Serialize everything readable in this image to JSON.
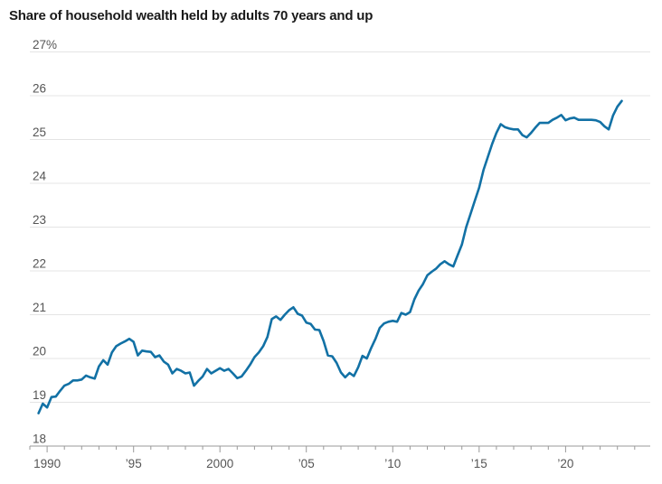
{
  "title": "Share of household wealth held by adults 70 years and up",
  "chart_data": {
    "type": "line",
    "title": "Share of household wealth held by adults 70 years and up",
    "xlabel": "",
    "ylabel": "",
    "unit": "%",
    "ylim": [
      18,
      27
    ],
    "xlim": [
      1989,
      2024.9
    ],
    "grid": "horizontal-only",
    "legend": "none",
    "yticks": [
      18,
      19,
      20,
      21,
      22,
      23,
      24,
      25,
      26,
      27
    ],
    "ytick_labels": [
      "18",
      "19",
      "20",
      "21",
      "22",
      "23",
      "24",
      "25",
      "26",
      "27%"
    ],
    "x_minor_tick_start": 1989,
    "x_minor_tick_end": 2024,
    "x_labeled_ticks": [
      {
        "year": 1990,
        "label": "1990"
      },
      {
        "year": 1995,
        "label": "’95"
      },
      {
        "year": 2000,
        "label": "2000"
      },
      {
        "year": 2005,
        "label": "’05"
      },
      {
        "year": 2010,
        "label": "’10"
      },
      {
        "year": 2015,
        "label": "’15"
      },
      {
        "year": 2020,
        "label": "’20"
      }
    ],
    "colors": {
      "line": "#1271a5",
      "grid": "#e4e4e4",
      "axis": "#999999",
      "tick": "#999999",
      "tick_label": "#555555",
      "title": "#1a1a1a",
      "background": "#ffffff"
    },
    "series": [
      {
        "name": "Share of household wealth held by adults 70 years and up",
        "frequency": "quarterly",
        "x_start": 1989.5,
        "x_step": 0.25,
        "values": [
          18.75,
          18.97,
          18.88,
          19.12,
          19.13,
          19.26,
          19.38,
          19.42,
          19.5,
          19.5,
          19.52,
          19.61,
          19.57,
          19.54,
          19.82,
          19.96,
          19.86,
          20.14,
          20.28,
          20.34,
          20.39,
          20.45,
          20.38,
          20.07,
          20.18,
          20.16,
          20.15,
          20.03,
          20.07,
          19.93,
          19.86,
          19.66,
          19.76,
          19.72,
          19.66,
          19.68,
          19.38,
          19.49,
          19.59,
          19.76,
          19.66,
          19.72,
          19.78,
          19.72,
          19.76,
          19.66,
          19.55,
          19.59,
          19.72,
          19.86,
          20.03,
          20.14,
          20.28,
          20.49,
          20.9,
          20.96,
          20.88,
          21.0,
          21.1,
          21.17,
          21.02,
          20.98,
          20.82,
          20.79,
          20.66,
          20.65,
          20.4,
          20.07,
          20.05,
          19.9,
          19.68,
          19.57,
          19.67,
          19.6,
          19.8,
          20.06,
          20.0,
          20.24,
          20.45,
          20.7,
          20.8,
          20.84,
          20.86,
          20.84,
          21.04,
          21.0,
          21.06,
          21.35,
          21.55,
          21.7,
          21.9,
          21.98,
          22.05,
          22.15,
          22.22,
          22.15,
          22.1,
          22.35,
          22.6,
          23.0,
          23.3,
          23.6,
          23.9,
          24.3,
          24.6,
          24.9,
          25.15,
          25.35,
          25.28,
          25.25,
          25.23,
          25.23,
          25.1,
          25.05,
          25.15,
          25.27,
          25.38,
          25.38,
          25.38,
          25.45,
          25.5,
          25.56,
          25.44,
          25.48,
          25.5,
          25.45,
          25.45,
          25.45,
          25.45,
          25.44,
          25.4,
          25.3,
          25.23,
          25.55,
          25.75,
          25.88
        ]
      }
    ]
  }
}
